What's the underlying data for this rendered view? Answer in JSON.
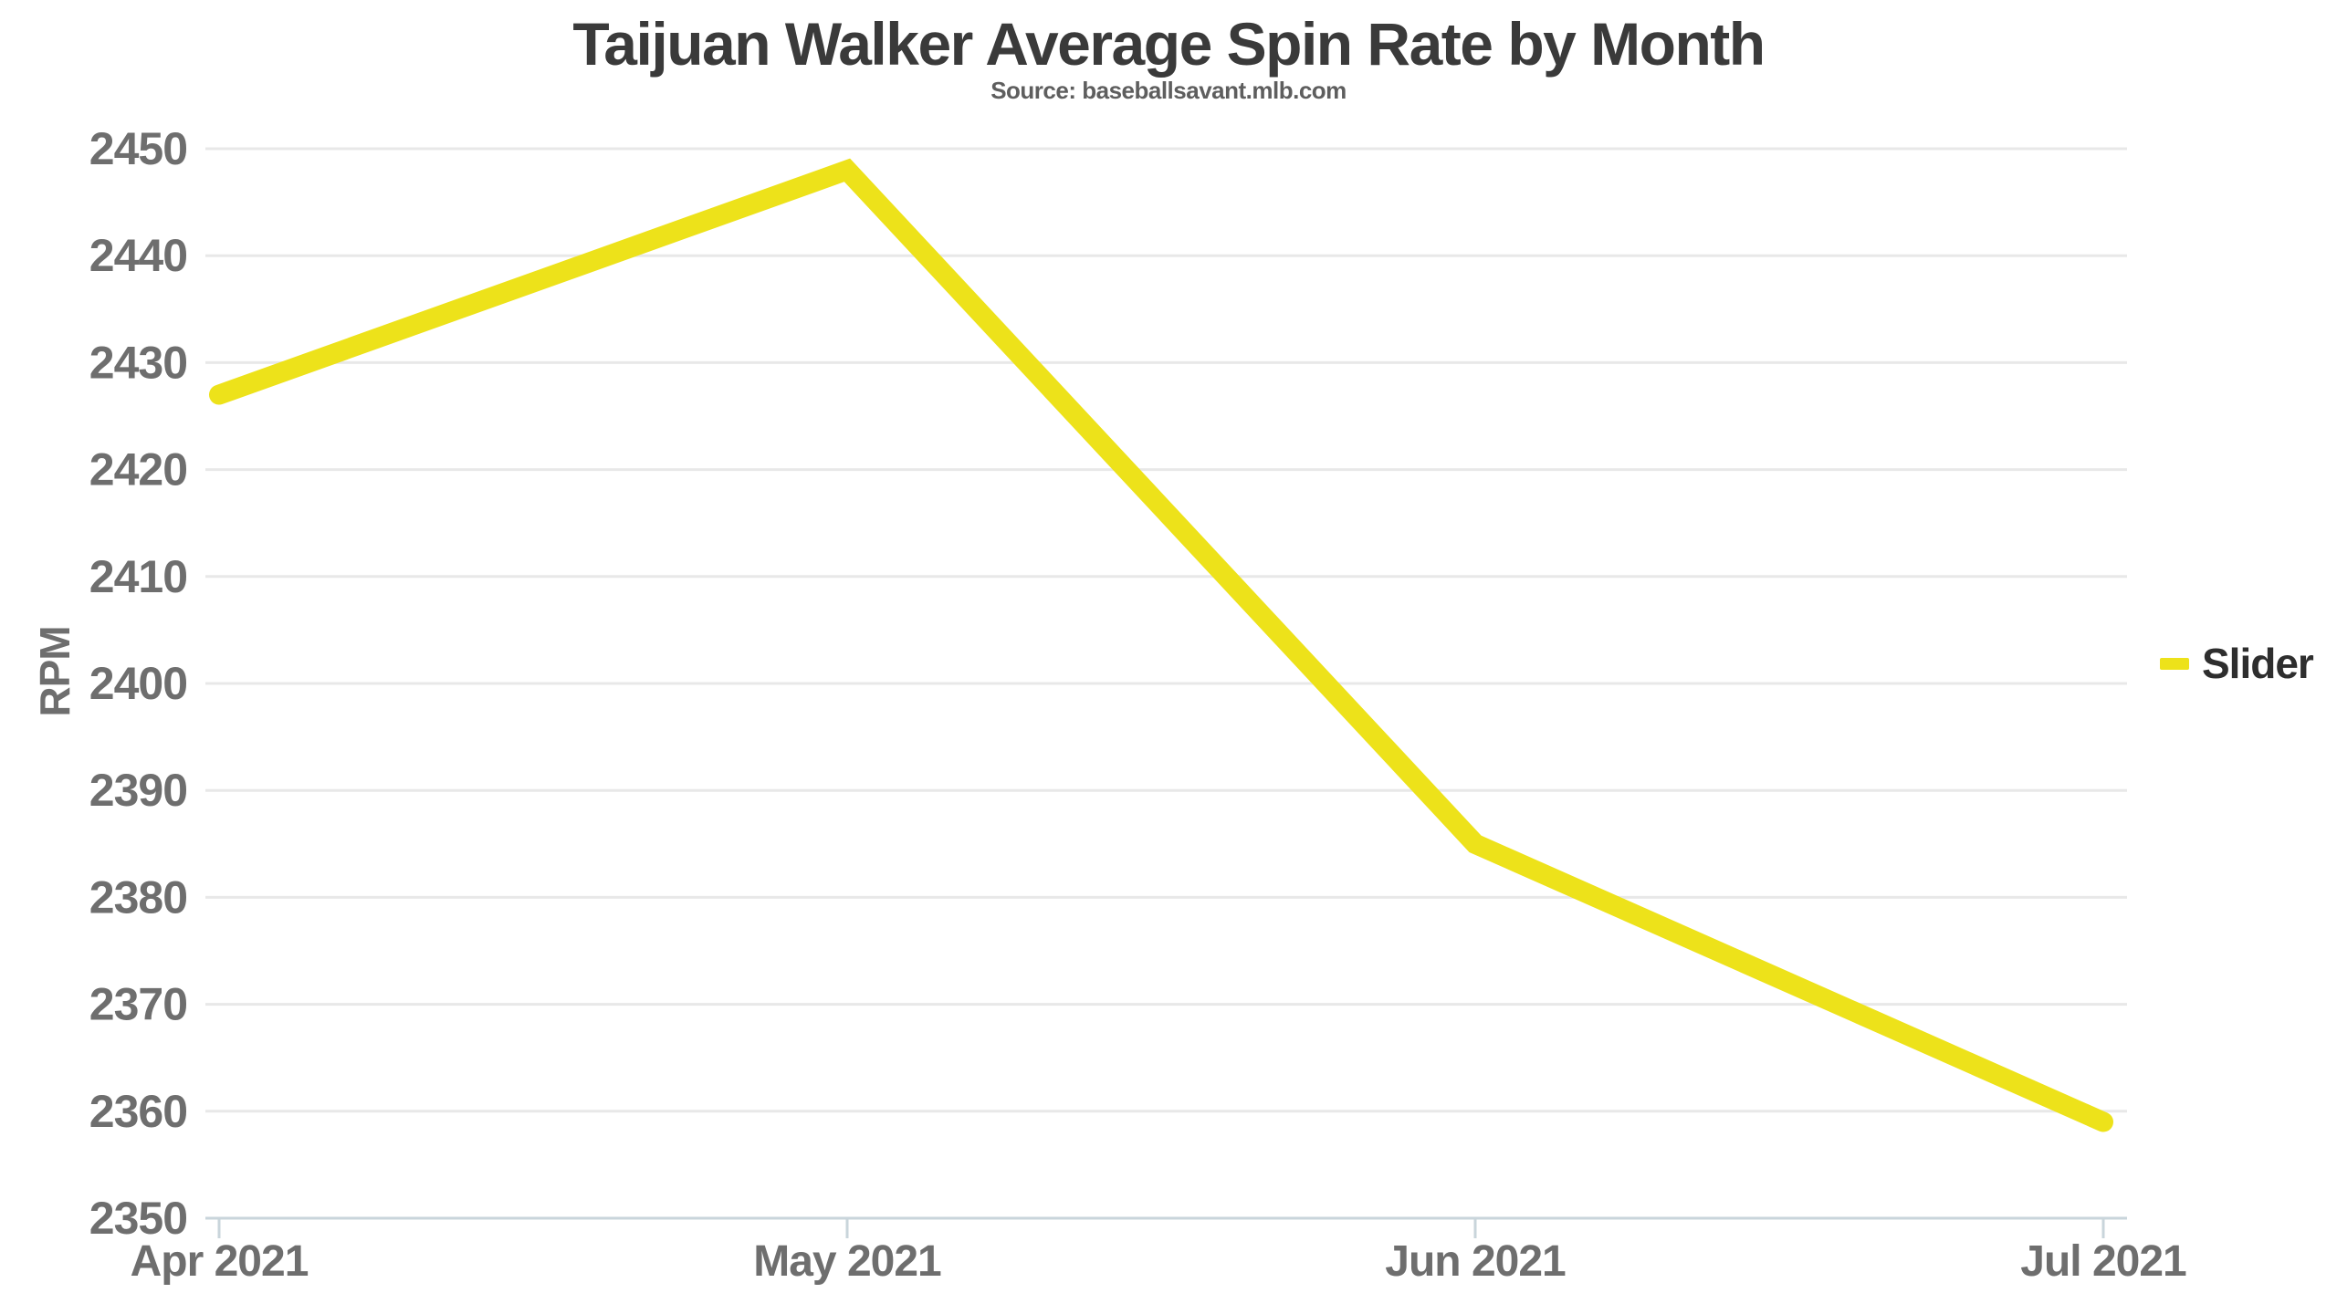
{
  "title": "Taijuan Walker Average Spin Rate by Month",
  "subtitle": "Source: baseballsavant.mlb.com",
  "legend": {
    "items": [
      {
        "label": "Slider",
        "color": "#EDE21A"
      }
    ],
    "position": "right"
  },
  "chart_data": {
    "type": "line",
    "title": "Taijuan Walker Average Spin Rate by Month",
    "subtitle": "Source: baseballsavant.mlb.com",
    "categories": [
      "Apr 2021",
      "May 2021",
      "Jun 2021",
      "Jul 2021"
    ],
    "series": [
      {
        "name": "Slider",
        "values": [
          2427,
          2448,
          2385,
          2359
        ],
        "color": "#EDE21A"
      }
    ],
    "xlabel": "",
    "ylabel": "RPM",
    "ylim": [
      2350,
      2450
    ],
    "yticks": [
      2350,
      2360,
      2370,
      2380,
      2390,
      2400,
      2410,
      2420,
      2430,
      2440,
      2450
    ],
    "grid": true,
    "legend_position": "right"
  },
  "colors": {
    "series_yellow": "#EDE21A",
    "title_text": "#3a3a3a",
    "subtitle_text": "#5e5e5e",
    "axis_label_text": "#6e6e6e",
    "legend_text": "#2e2e2e",
    "gridline": "#e8e8e8",
    "axis_line": "#c9d5db",
    "background": "#ffffff"
  }
}
